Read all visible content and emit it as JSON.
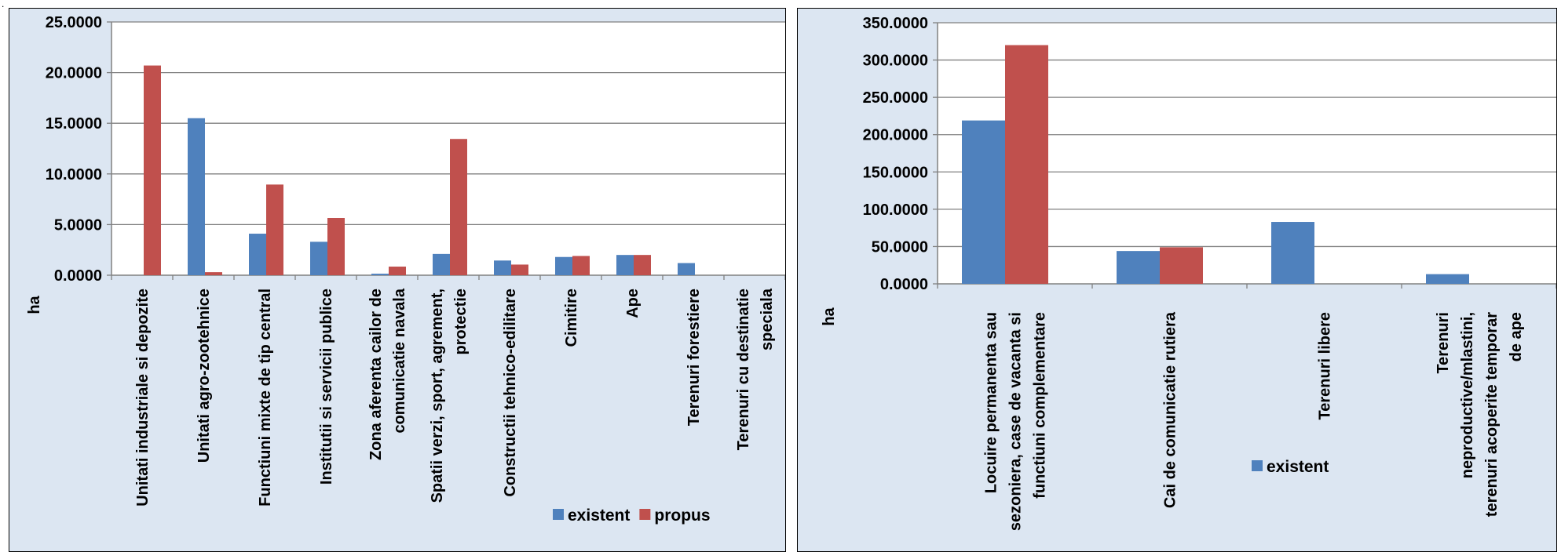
{
  "page": {
    "corner_mark": "."
  },
  "colors": {
    "existent": "#4f81bd",
    "propus": "#c0504d",
    "plot_bg": "#ffffff",
    "panel_bg": "#dce6f2",
    "grid": "#808080"
  },
  "legend": {
    "existent": "existent",
    "propus": "propus"
  },
  "chart_data": [
    {
      "type": "bar",
      "ylabel": "ha",
      "ylim": [
        0,
        25
      ],
      "yticks": [
        "0.0000",
        "5.0000",
        "10.0000",
        "15.0000",
        "20.0000",
        "25.0000"
      ],
      "categories": [
        [
          "Unitati industriale si depozite"
        ],
        [
          "Unitati agro-zootehnice"
        ],
        [
          "Functiuni mixte de tip central"
        ],
        [
          "Institutii si servicii publice"
        ],
        [
          "Zona aferenta cailor de",
          "comunicatie navala"
        ],
        [
          "Spatii verzi, sport, agrement,",
          "protectie"
        ],
        [
          "Constructii tehnico-edilitare"
        ],
        [
          "Cimitire"
        ],
        [
          "Ape"
        ],
        [
          "Terenuri forestiere"
        ],
        [
          "Terenuri cu destinatie",
          "speciala"
        ]
      ],
      "series": [
        {
          "name": "existent",
          "values": [
            0,
            15.5,
            4.1,
            3.3,
            0.15,
            2.1,
            1.45,
            1.8,
            2.0,
            1.2,
            0
          ]
        },
        {
          "name": "propus",
          "values": [
            20.7,
            0.3,
            8.95,
            5.65,
            0.85,
            13.45,
            1.05,
            1.9,
            2.0,
            0,
            0
          ]
        }
      ],
      "legend_position": "bottom-right",
      "grid": true
    },
    {
      "type": "bar",
      "ylabel": "ha",
      "ylim": [
        0,
        350
      ],
      "yticks": [
        "0.0000",
        "50.0000",
        "100.0000",
        "150.0000",
        "200.0000",
        "250.0000",
        "300.0000",
        "350.0000"
      ],
      "categories": [
        [
          "Locuire permanenta sau",
          "sezoniera, case de vacanta si",
          "functiuni complementare"
        ],
        [
          "Cai de comunicatie rutiera"
        ],
        [
          "Terenuri libere"
        ],
        [
          "Terenuri",
          "neproductive/mlastini,",
          "terenuri acoperite temporar",
          "de ape"
        ]
      ],
      "series": [
        {
          "name": "existent",
          "values": [
            219,
            44,
            83,
            13
          ]
        },
        {
          "name": "propus",
          "values": [
            320,
            49,
            0,
            0
          ]
        }
      ],
      "legend_position": "bottom-center",
      "grid": true
    }
  ]
}
